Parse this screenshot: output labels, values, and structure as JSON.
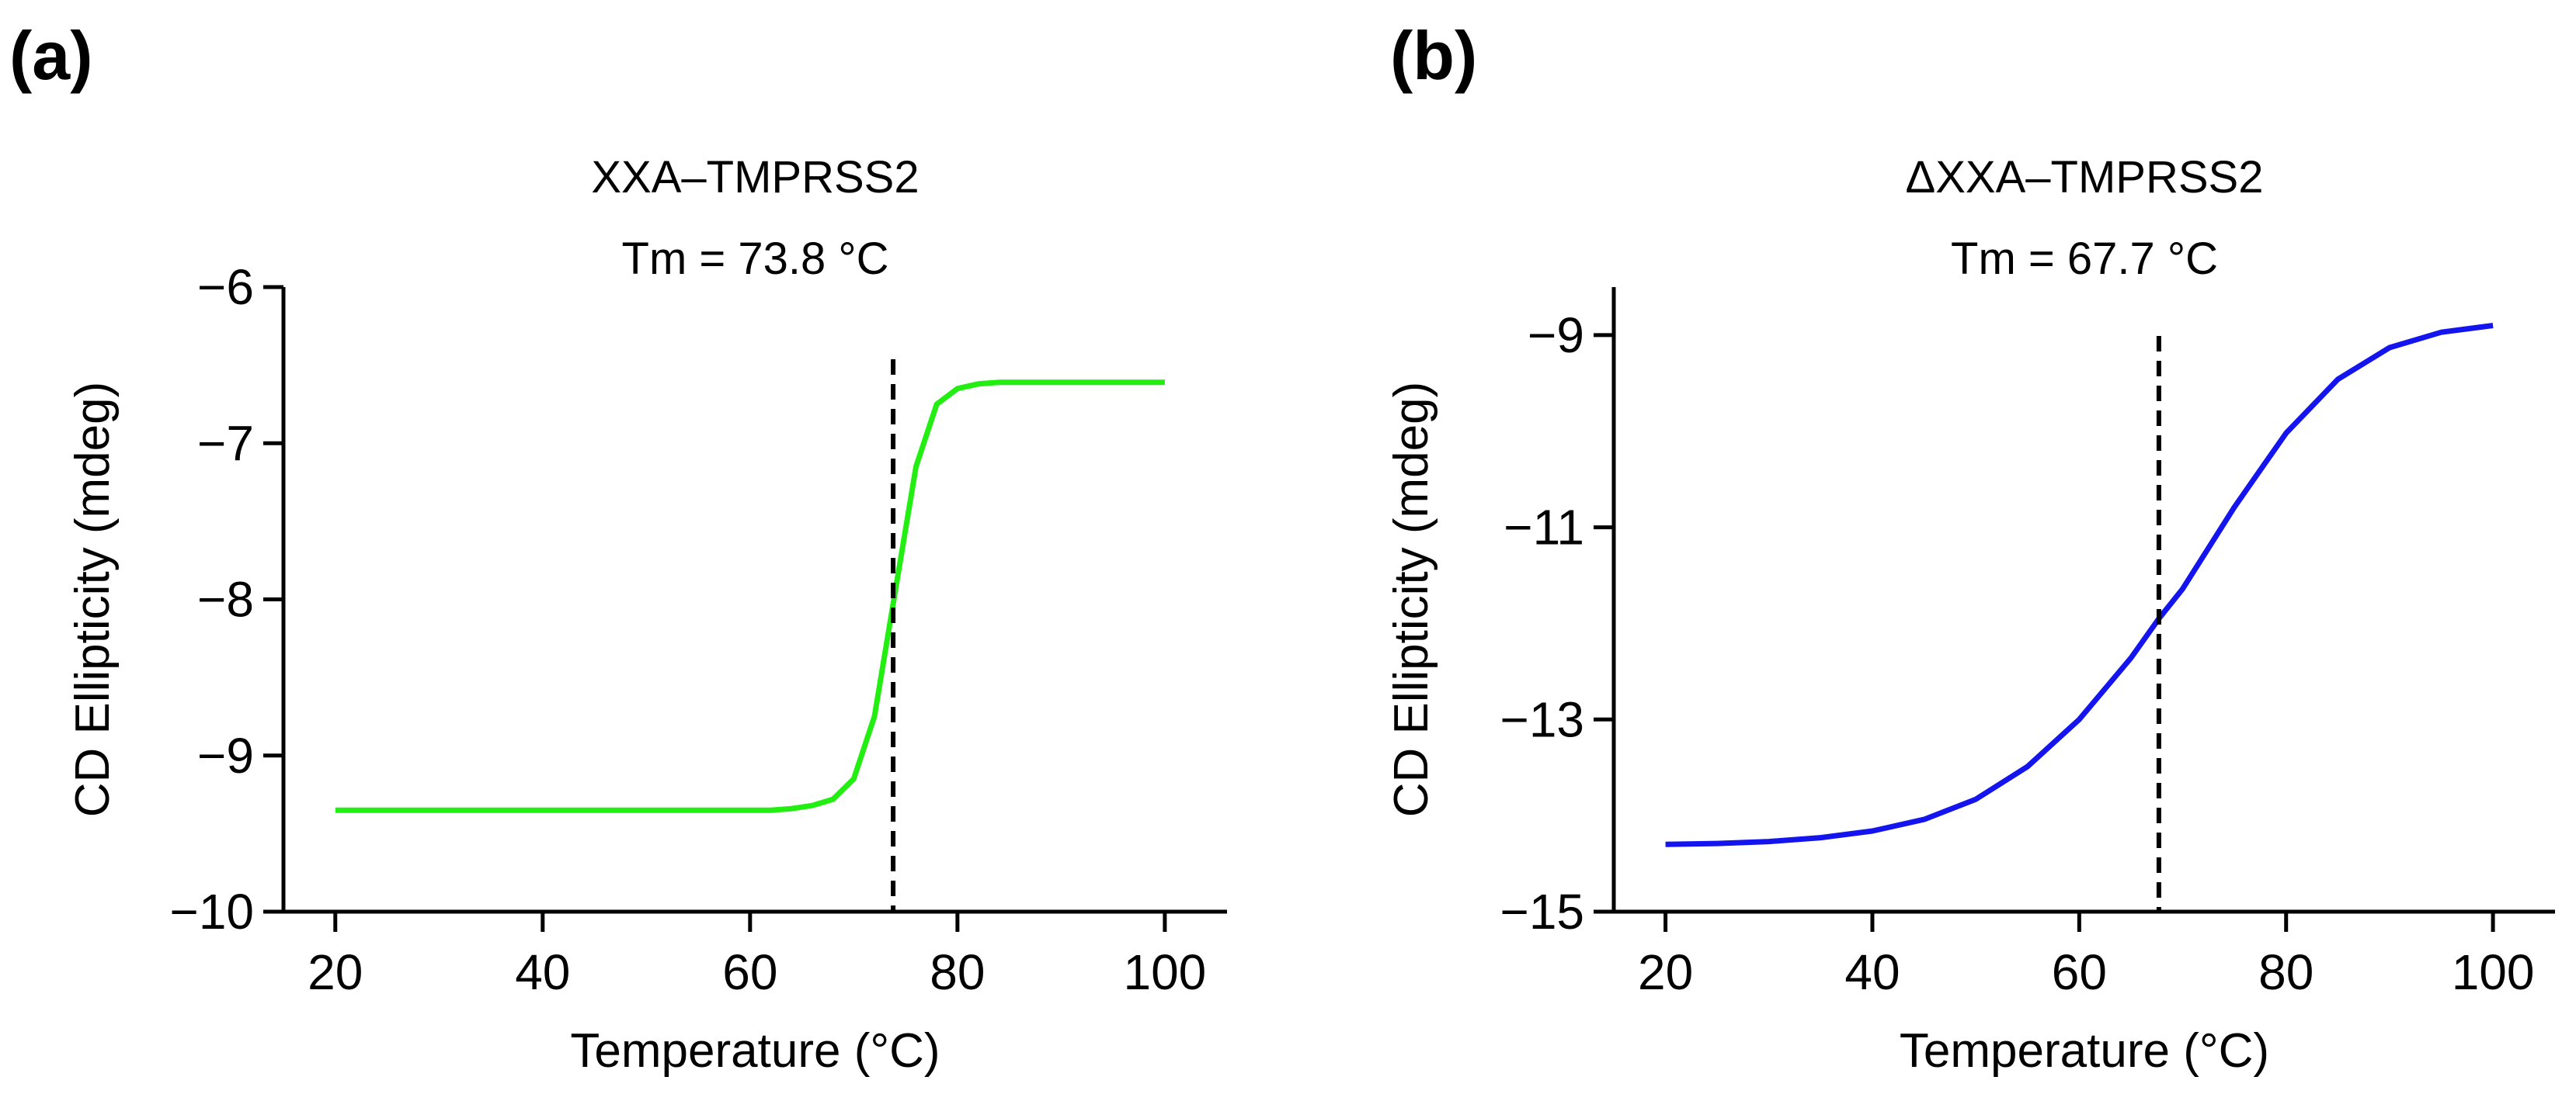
{
  "panel_labels": [
    "(a)",
    "(b)"
  ],
  "chart_data": [
    {
      "type": "line",
      "title": "XXA–TMPRSS2",
      "subtitle": "Tm = 73.8 °C",
      "xlabel": "Temperature (°C)",
      "ylabel": "CD Ellipticity  (mdeg)",
      "xlim": [
        15,
        106
      ],
      "ylim": [
        -10,
        -6
      ],
      "xticks": [
        20,
        40,
        60,
        80,
        100
      ],
      "yticks": [
        -10,
        -9,
        -8,
        -7,
        -6
      ],
      "grid": false,
      "tm_line": 73.8,
      "series": [
        {
          "name": "XXA–TMPRSS2",
          "color": "#22ee11",
          "x": [
            20,
            25,
            30,
            35,
            40,
            45,
            50,
            55,
            60,
            62,
            64,
            66,
            68,
            70,
            72,
            74,
            76,
            78,
            80,
            82,
            84,
            86,
            90,
            95,
            100
          ],
          "y": [
            -9.35,
            -9.35,
            -9.35,
            -9.35,
            -9.35,
            -9.35,
            -9.35,
            -9.35,
            -9.35,
            -9.35,
            -9.34,
            -9.32,
            -9.28,
            -9.15,
            -8.75,
            -7.95,
            -7.15,
            -6.75,
            -6.65,
            -6.62,
            -6.61,
            -6.61,
            -6.61,
            -6.61,
            -6.61
          ]
        }
      ]
    },
    {
      "type": "line",
      "title": "ΔXXA–TMPRSS2",
      "subtitle": "Tm = 67.7 °C",
      "xlabel": "Temperature (°C)",
      "ylabel": "CD Ellipticity  (mdeg)",
      "xlim": [
        15,
        106
      ],
      "ylim": [
        -15,
        -8.5
      ],
      "xticks": [
        20,
        40,
        60,
        80,
        100
      ],
      "yticks": [
        -15,
        -13,
        -11,
        -9
      ],
      "grid": false,
      "tm_line": 67.7,
      "series": [
        {
          "name": "ΔXXA–TMPRSS2",
          "color": "#1414ee",
          "x": [
            20,
            25,
            30,
            35,
            40,
            45,
            50,
            55,
            60,
            65,
            67.7,
            70,
            75,
            80,
            85,
            90,
            95,
            100
          ],
          "y": [
            -14.3,
            -14.29,
            -14.27,
            -14.23,
            -14.16,
            -14.04,
            -13.83,
            -13.49,
            -13.0,
            -12.36,
            -11.95,
            -11.64,
            -10.79,
            -10.02,
            -9.46,
            -9.13,
            -8.97,
            -8.9
          ]
        }
      ]
    }
  ]
}
